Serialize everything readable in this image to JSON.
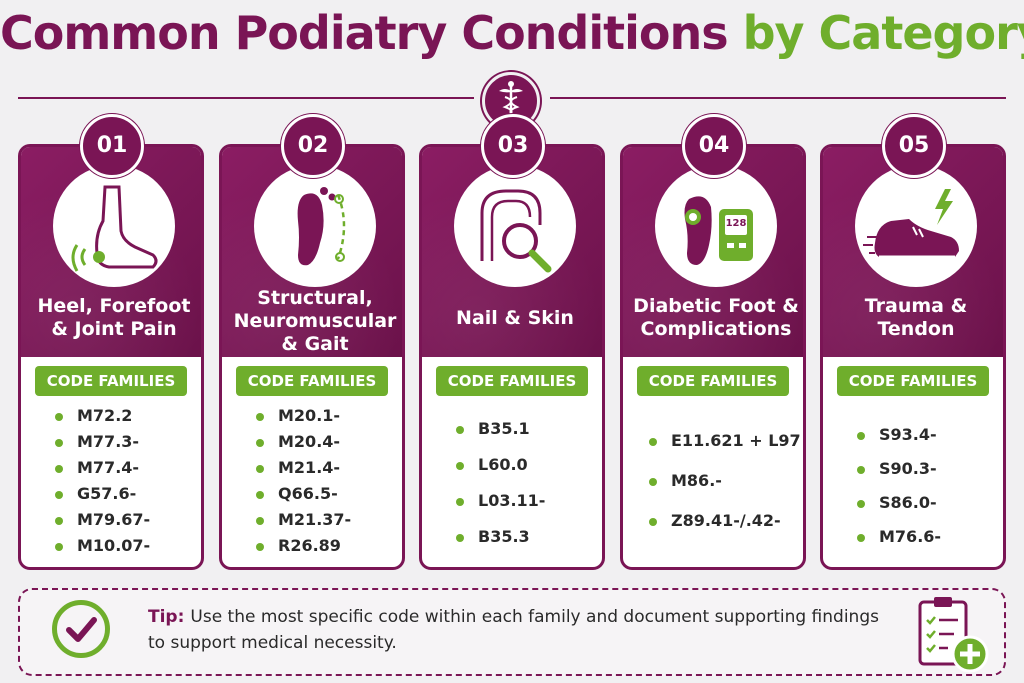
{
  "title": {
    "main": "Common Podiatry Conditions",
    "accent": "by Category"
  },
  "code_families_label": "CODE FAMILIES",
  "categories": [
    {
      "number": "01",
      "name_lines": [
        "Heel, Forefoot",
        "& Joint Pain"
      ],
      "icon": "foot-pain-icon",
      "codes": [
        "M72.2",
        "M77.3-",
        "M77.4-",
        "G57.6-",
        "M79.67-",
        "M10.07-"
      ]
    },
    {
      "number": "02",
      "name_lines": [
        "Structural,",
        "Neuromuscular",
        "& Gait"
      ],
      "icon": "foot-sole-gait-icon",
      "codes": [
        "M20.1-",
        "M20.4-",
        "M21.4-",
        "Q66.5-",
        "M21.37-",
        "R26.89"
      ]
    },
    {
      "number": "03",
      "name_lines": [
        "Nail & Skin"
      ],
      "icon": "nail-magnifier-icon",
      "codes": [
        "B35.1",
        "L60.0",
        "L03.11-",
        "B35.3"
      ]
    },
    {
      "number": "04",
      "name_lines": [
        "Diabetic Foot &",
        "Complications"
      ],
      "icon": "glucose-meter-icon",
      "codes": [
        "E11.621 + L97",
        "M86.-",
        "Z89.41-/.42-"
      ],
      "meter_value": "128"
    },
    {
      "number": "05",
      "name_lines": [
        "Trauma &",
        "Tendon"
      ],
      "icon": "sneaker-injury-icon",
      "codes": [
        "S93.4-",
        "S90.3-",
        "S86.0-",
        "M76.6-"
      ]
    }
  ],
  "tip": {
    "label": "Tip:",
    "text": "Use the most specific code within each family and document supporting findings to support medical necessity."
  },
  "colors": {
    "primary": "#7a1555",
    "accent": "#6fae2c",
    "background": "#f1f0f2"
  }
}
